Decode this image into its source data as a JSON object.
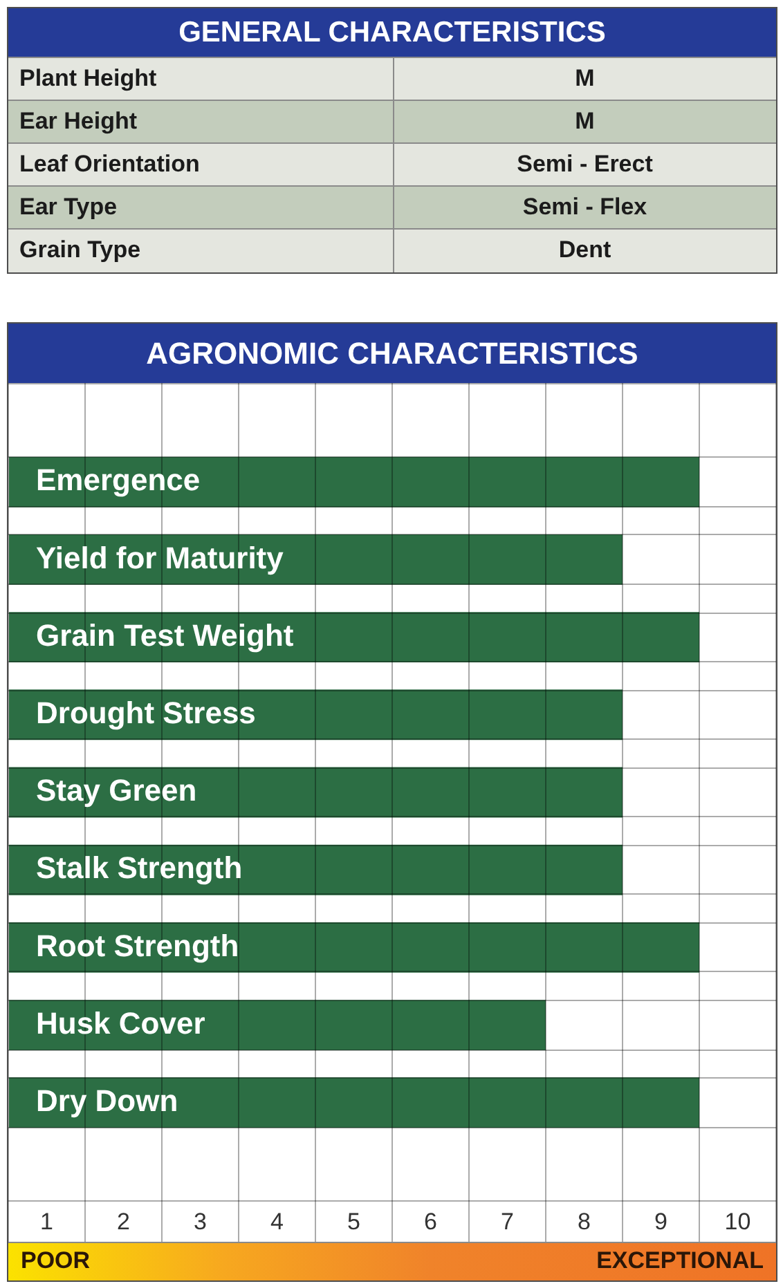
{
  "chart_data": [
    {
      "type": "other",
      "title": "GENERAL CHARACTERISTICS",
      "categories": [
        "Plant Height",
        "Ear Height",
        "Leaf Orientation",
        "Ear Type",
        "Grain Type"
      ],
      "annotations": [
        "M",
        "M",
        "Semi - Erect",
        "Semi - Flex",
        "Dent"
      ]
    },
    {
      "type": "bar",
      "orientation": "horizontal",
      "title": "AGRONOMIC CHARACTERISTICS",
      "categories": [
        "Emergence",
        "Yield for Maturity",
        "Grain Test Weight",
        "Drought Stress",
        "Stay Green",
        "Stalk Strength",
        "Root Strength",
        "Husk Cover",
        "Dry Down"
      ],
      "values": [
        9,
        8,
        9,
        8,
        8,
        8,
        9,
        7,
        9
      ],
      "color": "#2c6e44",
      "xlim": [
        0,
        10
      ],
      "xticks": [
        {
          "value": 0,
          "label": null
        },
        {
          "value": 0.5,
          "label": "1"
        },
        {
          "value": 1,
          "label": null
        },
        {
          "value": 1.5,
          "label": "2"
        },
        {
          "value": 2,
          "label": null
        },
        {
          "value": 2.5,
          "label": "3"
        },
        {
          "value": 3,
          "label": null
        },
        {
          "value": 3.5,
          "label": "4"
        },
        {
          "value": 4,
          "label": null
        },
        {
          "value": 4.5,
          "label": "5"
        },
        {
          "value": 5,
          "label": null
        },
        {
          "value": 5.5,
          "label": "6"
        },
        {
          "value": 6,
          "label": null
        },
        {
          "value": 6.5,
          "label": "7"
        },
        {
          "value": 7,
          "label": null
        },
        {
          "value": 7.5,
          "label": "8"
        },
        {
          "value": 8,
          "label": null
        },
        {
          "value": 8.5,
          "label": "9"
        },
        {
          "value": 9,
          "label": null
        },
        {
          "value": 9.5,
          "label": "10"
        },
        {
          "value": 10,
          "label": null
        }
      ],
      "grid": true,
      "annotations": [
        "POOR",
        "EXCEPTIONAL"
      ]
    }
  ]
}
